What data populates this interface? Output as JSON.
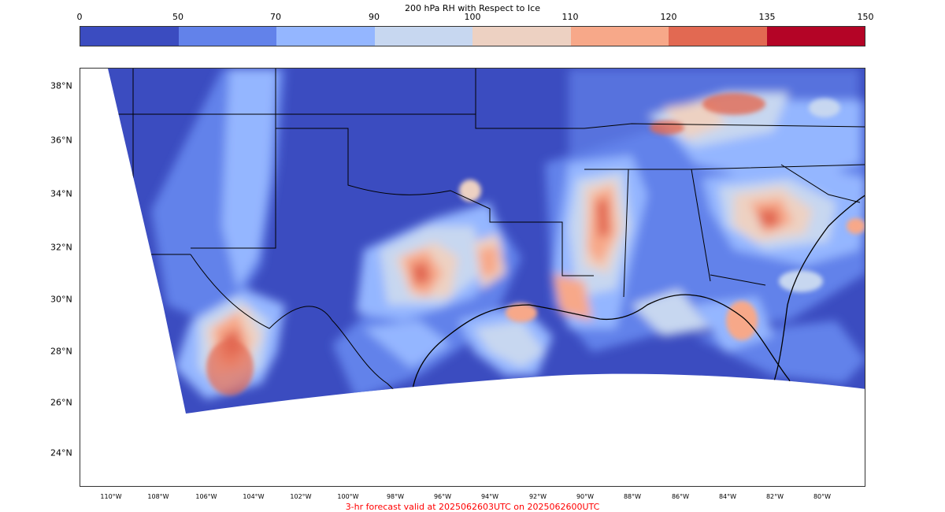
{
  "colorbar": {
    "title": "200 hPa RH with Respect to Ice",
    "ticks": [
      "0",
      "50",
      "70",
      "90",
      "100",
      "110",
      "120",
      "135",
      "150"
    ],
    "colors": [
      "#3b4cc0",
      "#6282ea",
      "#94b6ff",
      "#c7d7f0",
      "#edd1c2",
      "#f7a889",
      "#e26952",
      "#b40426"
    ]
  },
  "map": {
    "lat_labels": [
      "38°N",
      "36°N",
      "34°N",
      "32°N",
      "30°N",
      "28°N",
      "26°N",
      "24°N"
    ],
    "lon_labels": [
      "110°W",
      "108°W",
      "106°W",
      "104°W",
      "102°W",
      "100°W",
      "98°W",
      "96°W",
      "94°W",
      "92°W",
      "90°W",
      "88°W",
      "86°W",
      "84°W",
      "82°W",
      "80°W"
    ]
  },
  "footer": {
    "text": "3-hr forecast valid at 2025062603UTC on 2025062600UTC",
    "color": "#ff0000"
  }
}
